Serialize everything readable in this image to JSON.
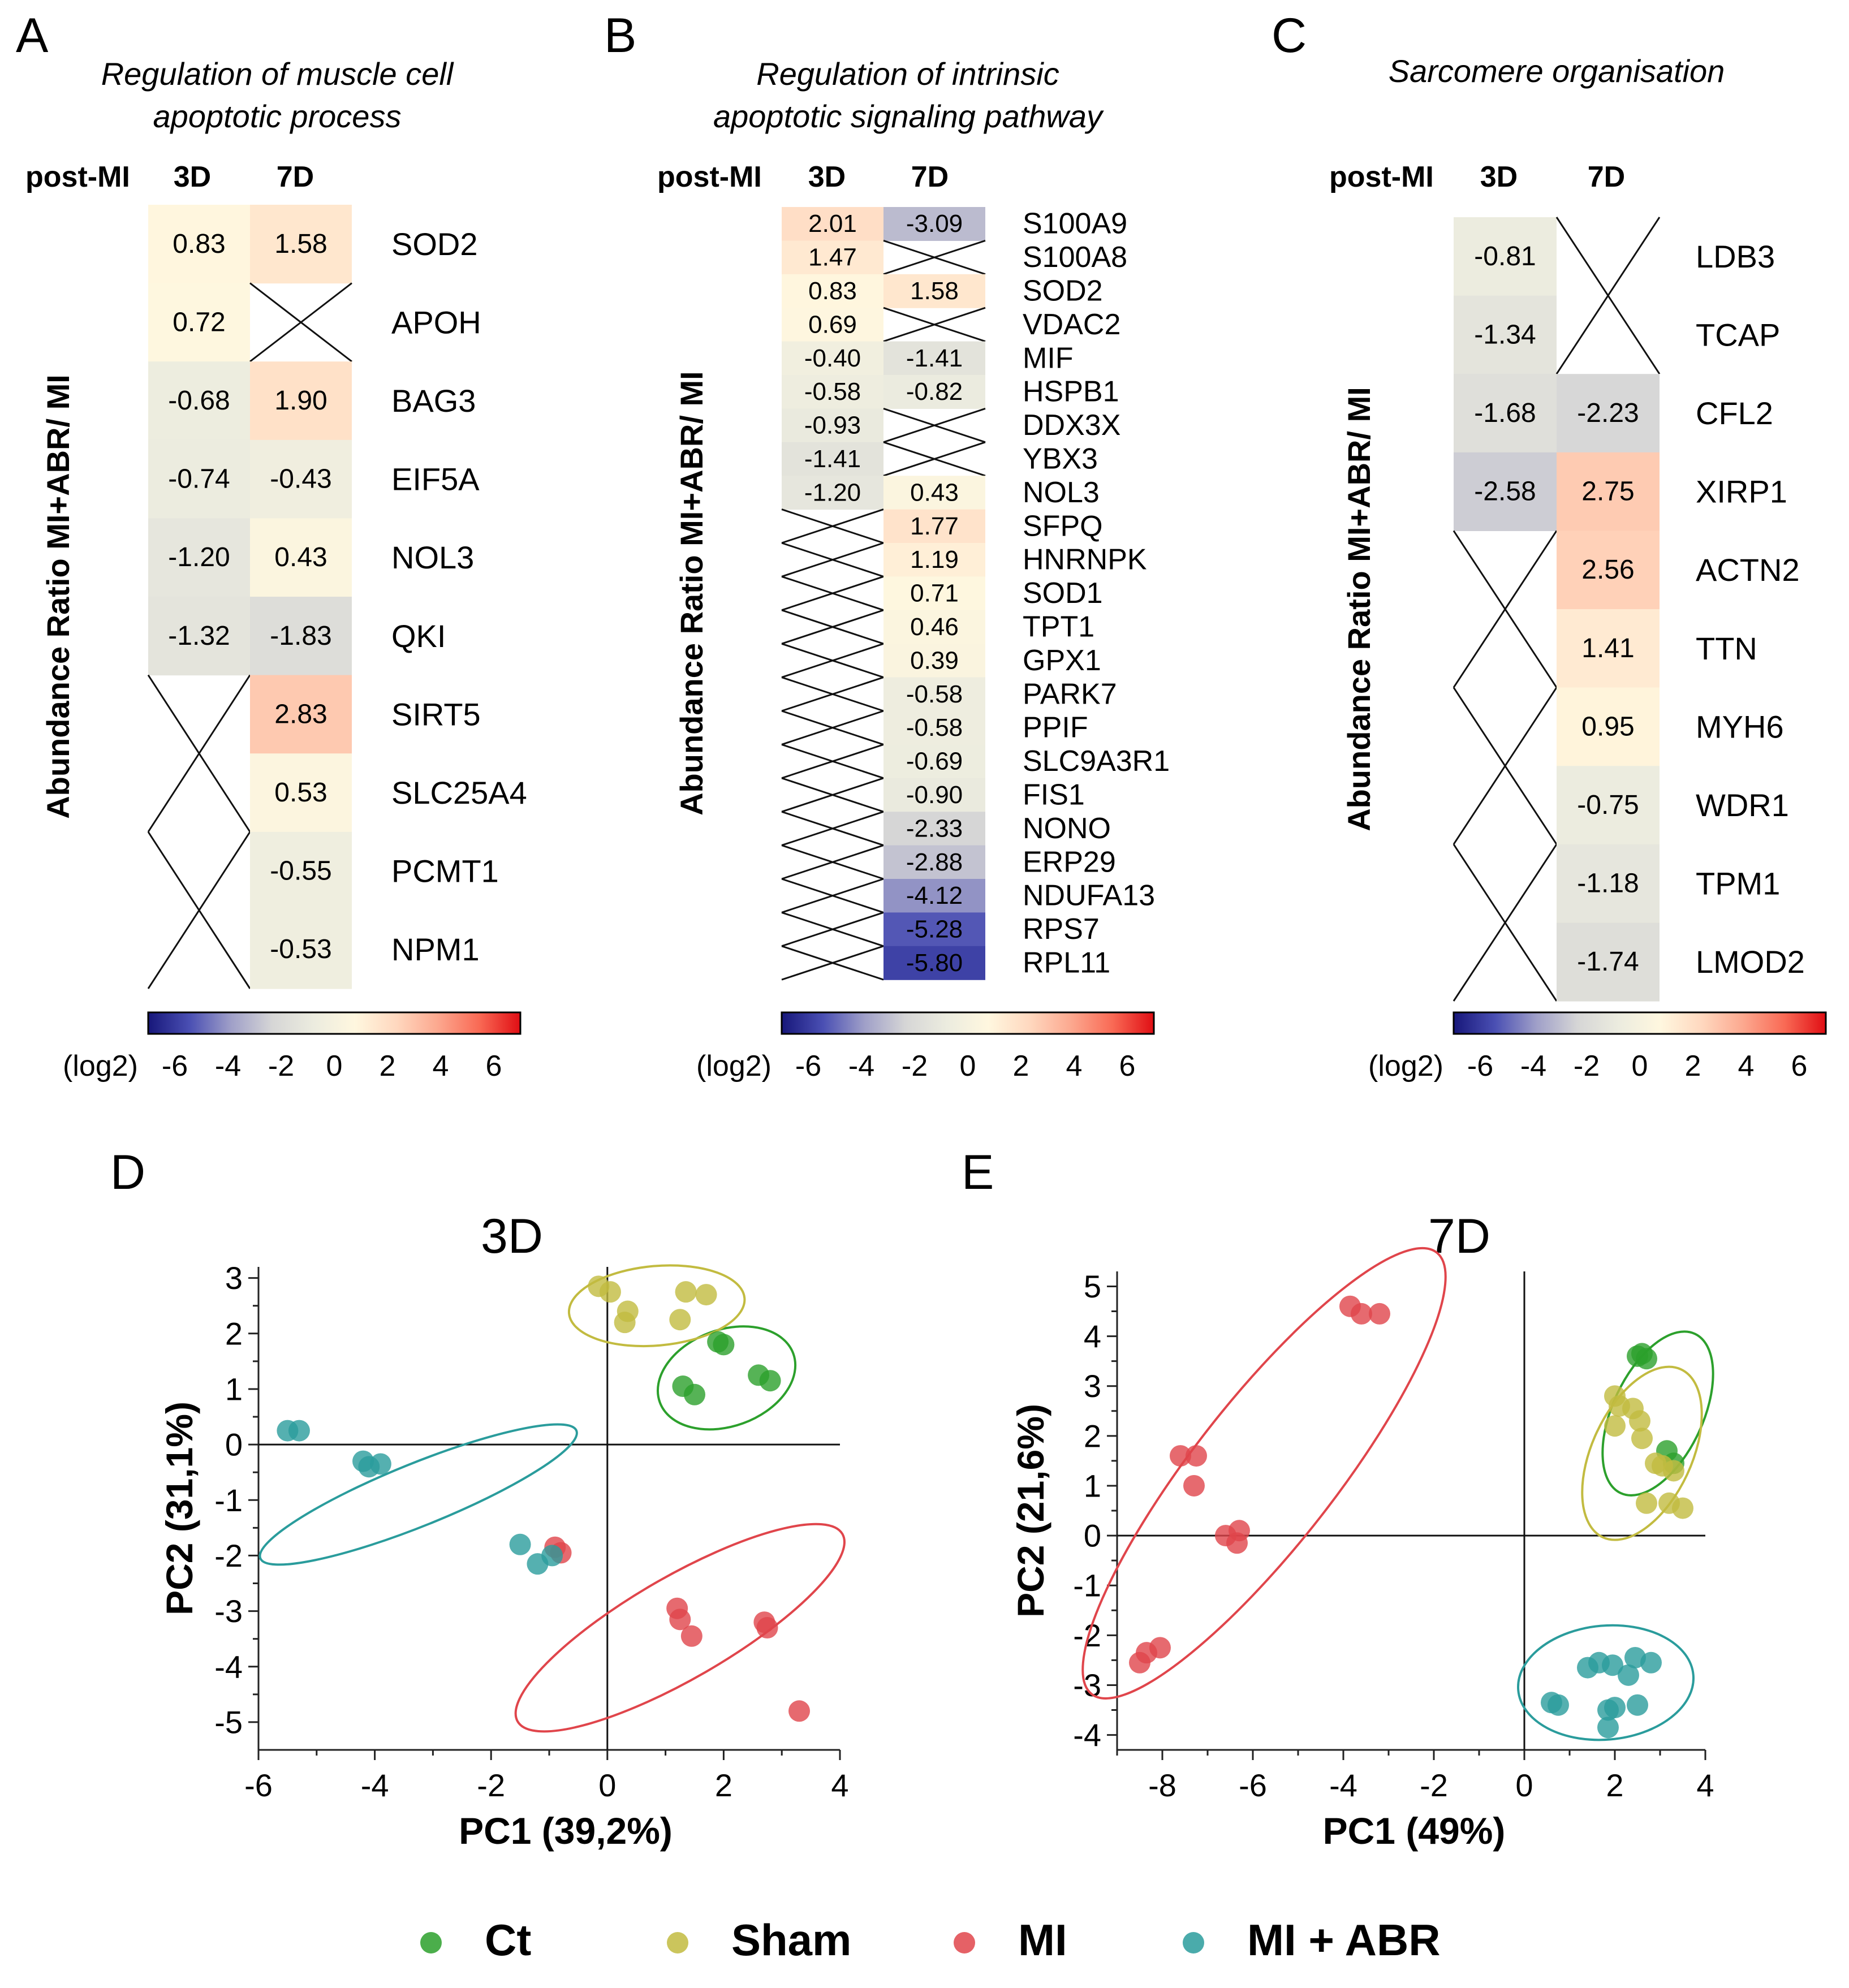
{
  "figure": {
    "legend": [
      {
        "label": "Ct",
        "color": "#2ca02c"
      },
      {
        "label": "Sham",
        "color": "#c2bb40"
      },
      {
        "label": "MI",
        "color": "#e0454b"
      },
      {
        "label": "MI + ABR",
        "color": "#2a9c9c"
      }
    ]
  },
  "colors": {
    "scale": [
      "#17177a",
      "#4a4fb3",
      "#9f9fc8",
      "#d6d6d6",
      "#ececdf",
      "#fff7df",
      "#ffd8bf",
      "#fca88f",
      "#f96a55",
      "#e00e14"
    ]
  },
  "chart_data": [
    {
      "type": "heatmap",
      "panel": "A",
      "title": "Regulation of  muscle cell apoptotic process",
      "title_lines": [
        "Regulation of  muscle cell",
        "apoptotic process"
      ],
      "header": "post-MI",
      "columns": [
        "3D",
        "7D"
      ],
      "ylabel": "Abundance Ratio MI+ABR/ MI",
      "rows": [
        {
          "gene": "SOD2",
          "values": [
            0.83,
            1.58
          ]
        },
        {
          "gene": "APOH",
          "values": [
            0.72,
            null
          ]
        },
        {
          "gene": "BAG3",
          "values": [
            -0.68,
            1.9
          ]
        },
        {
          "gene": "EIF5A",
          "values": [
            -0.74,
            -0.43
          ]
        },
        {
          "gene": "NOL3",
          "values": [
            -1.2,
            0.43
          ]
        },
        {
          "gene": "QKI",
          "values": [
            -1.32,
            -1.83
          ]
        },
        {
          "gene": "SIRT5",
          "values": [
            null,
            2.83
          ]
        },
        {
          "gene": "SLC25A4",
          "values": [
            null,
            0.53
          ]
        },
        {
          "gene": "PCMT1",
          "values": [
            null,
            -0.55
          ]
        },
        {
          "gene": "NPM1",
          "values": [
            null,
            -0.53
          ]
        }
      ],
      "colorbar": {
        "label": "(log2)",
        "ticks": [
          "-6",
          "-4",
          "-2",
          "0",
          "2",
          "4",
          "6"
        ],
        "range": [
          -7,
          7
        ]
      }
    },
    {
      "type": "heatmap",
      "panel": "B",
      "title": "Regulation of intrinsic apoptotic signaling pathway",
      "title_lines": [
        "Regulation of intrinsic",
        "apoptotic signaling pathway"
      ],
      "header": "post-MI",
      "columns": [
        "3D",
        "7D"
      ],
      "ylabel": "Abundance Ratio MI+ABR/ MI",
      "rows": [
        {
          "gene": "S100A9",
          "values": [
            2.01,
            -3.09
          ]
        },
        {
          "gene": "S100A8",
          "values": [
            1.47,
            null
          ]
        },
        {
          "gene": "SOD2",
          "values": [
            0.83,
            1.58
          ]
        },
        {
          "gene": "VDAC2",
          "values": [
            0.69,
            null
          ]
        },
        {
          "gene": "MIF",
          "values": [
            -0.4,
            -1.41
          ]
        },
        {
          "gene": "HSPB1",
          "values": [
            -0.58,
            -0.82
          ]
        },
        {
          "gene": "DDX3X",
          "values": [
            -0.93,
            null
          ]
        },
        {
          "gene": "YBX3",
          "values": [
            -1.41,
            null
          ]
        },
        {
          "gene": "NOL3",
          "values": [
            -1.2,
            0.43
          ]
        },
        {
          "gene": "SFPQ",
          "values": [
            null,
            1.77
          ]
        },
        {
          "gene": "HNRNPK",
          "values": [
            null,
            1.19
          ]
        },
        {
          "gene": "SOD1",
          "values": [
            null,
            0.71
          ]
        },
        {
          "gene": "TPT1",
          "values": [
            null,
            0.46
          ]
        },
        {
          "gene": "GPX1",
          "values": [
            null,
            0.39
          ]
        },
        {
          "gene": "PARK7",
          "values": [
            null,
            -0.58
          ]
        },
        {
          "gene": "PPIF",
          "values": [
            null,
            -0.58
          ]
        },
        {
          "gene": "SLC9A3R1",
          "values": [
            null,
            -0.69
          ]
        },
        {
          "gene": "FIS1",
          "values": [
            null,
            -0.9
          ]
        },
        {
          "gene": "NONO",
          "values": [
            null,
            -2.33
          ]
        },
        {
          "gene": "ERP29",
          "values": [
            null,
            -2.88
          ]
        },
        {
          "gene": "NDUFA13",
          "values": [
            null,
            -4.12
          ]
        },
        {
          "gene": "RPS7",
          "values": [
            null,
            -5.28
          ]
        },
        {
          "gene": "RPL11",
          "values": [
            null,
            -5.8
          ]
        }
      ],
      "colorbar": {
        "label": "(log2)",
        "ticks": [
          "-6",
          "-4",
          "-2",
          "0",
          "2",
          "4",
          "6"
        ],
        "range": [
          -7,
          7
        ]
      }
    },
    {
      "type": "heatmap",
      "panel": "C",
      "title": "Sarcomere organisation",
      "title_lines": [
        "Sarcomere organisation"
      ],
      "header": "post-MI",
      "columns": [
        "3D",
        "7D"
      ],
      "ylabel": "Abundance Ratio MI+ABR/ MI",
      "rows": [
        {
          "gene": "LDB3",
          "values": [
            -0.81,
            null
          ]
        },
        {
          "gene": "TCAP",
          "values": [
            -1.34,
            null
          ]
        },
        {
          "gene": "CFL2",
          "values": [
            -1.68,
            -2.23
          ]
        },
        {
          "gene": "XIRP1",
          "values": [
            -2.58,
            2.75
          ]
        },
        {
          "gene": "ACTN2",
          "values": [
            null,
            2.56
          ]
        },
        {
          "gene": "TTN",
          "values": [
            null,
            1.41
          ]
        },
        {
          "gene": "MYH6",
          "values": [
            null,
            0.95
          ]
        },
        {
          "gene": "WDR1",
          "values": [
            null,
            -0.75
          ]
        },
        {
          "gene": "TPM1",
          "values": [
            null,
            -1.18
          ]
        },
        {
          "gene": "LMOD2",
          "values": [
            null,
            -1.74
          ]
        }
      ],
      "colorbar": {
        "label": "(log2)",
        "ticks": [
          "-6",
          "-4",
          "-2",
          "0",
          "2",
          "4",
          "6"
        ],
        "range": [
          -7,
          7
        ]
      }
    },
    {
      "type": "scatter",
      "panel": "D",
      "title": "3D",
      "xlabel": "PC1 (39,2%)",
      "ylabel": "PC2 (31,1%)",
      "xlim": [
        -6,
        4
      ],
      "ylim": [
        -5.5,
        3.2
      ],
      "xticks": [
        -6,
        -4,
        -2,
        0,
        2,
        4
      ],
      "yticks": [
        3,
        2,
        1,
        0,
        -1,
        -2,
        -3,
        -4,
        -5
      ],
      "series": [
        {
          "name": "Ct",
          "points": [
            [
              2.0,
              1.8
            ],
            [
              1.9,
              1.85
            ],
            [
              1.3,
              1.05
            ],
            [
              1.5,
              0.9
            ],
            [
              2.6,
              1.25
            ],
            [
              2.8,
              1.15
            ]
          ]
        },
        {
          "name": "Sham",
          "points": [
            [
              -0.15,
              2.85
            ],
            [
              0.05,
              2.75
            ],
            [
              0.35,
              2.4
            ],
            [
              0.3,
              2.2
            ],
            [
              1.35,
              2.75
            ],
            [
              1.7,
              2.7
            ],
            [
              1.25,
              2.25
            ]
          ]
        },
        {
          "name": "MI",
          "points": [
            [
              -0.9,
              -1.85
            ],
            [
              -0.8,
              -1.95
            ],
            [
              1.2,
              -2.95
            ],
            [
              1.25,
              -3.15
            ],
            [
              1.45,
              -3.45
            ],
            [
              2.7,
              -3.2
            ],
            [
              2.75,
              -3.3
            ],
            [
              3.3,
              -4.8
            ]
          ]
        },
        {
          "name": "MI + ABR",
          "points": [
            [
              -5.5,
              0.25
            ],
            [
              -5.3,
              0.25
            ],
            [
              -4.2,
              -0.3
            ],
            [
              -3.9,
              -0.35
            ],
            [
              -4.1,
              -0.4
            ],
            [
              -1.5,
              -1.8
            ],
            [
              -1.2,
              -2.15
            ],
            [
              -0.95,
              -2.0
            ]
          ]
        }
      ],
      "ellipses": [
        {
          "name": "Ct",
          "center": [
            2.05,
            1.2
          ],
          "rx": 1.25,
          "ry": 0.85,
          "angle": -20
        },
        {
          "name": "Sham",
          "center": [
            0.85,
            2.5
          ],
          "rx": 1.55,
          "ry": 0.7,
          "angle": -5
        },
        {
          "name": "MI",
          "center": [
            1.25,
            -3.3
          ],
          "rx": 3.3,
          "ry": 0.9,
          "angle": -30
        },
        {
          "name": "MI + ABR",
          "center": [
            -3.25,
            -0.9
          ],
          "rx": 3.0,
          "ry": 0.55,
          "angle": -22
        }
      ]
    },
    {
      "type": "scatter",
      "panel": "E",
      "title": "7D",
      "xlabel": "PC1 (49%)",
      "ylabel": "PC2 (21,6%)",
      "xlim": [
        -9,
        4
      ],
      "ylim": [
        -4.3,
        5.3
      ],
      "xticks": [
        -8,
        -6,
        -4,
        -2,
        0,
        2,
        4
      ],
      "yticks": [
        5,
        4,
        3,
        2,
        1,
        0,
        -1,
        -2,
        -3,
        -4
      ],
      "series": [
        {
          "name": "Ct",
          "points": [
            [
              2.5,
              3.6
            ],
            [
              2.6,
              3.65
            ],
            [
              2.7,
              3.55
            ],
            [
              3.15,
              1.7
            ],
            [
              3.3,
              1.45
            ]
          ]
        },
        {
          "name": "Sham",
          "points": [
            [
              2.0,
              2.8
            ],
            [
              2.1,
              2.6
            ],
            [
              2.4,
              2.55
            ],
            [
              2.55,
              2.3
            ],
            [
              2.0,
              2.2
            ],
            [
              2.6,
              1.95
            ],
            [
              2.9,
              1.45
            ],
            [
              3.05,
              1.4
            ],
            [
              3.3,
              1.3
            ],
            [
              2.7,
              0.65
            ],
            [
              3.2,
              0.65
            ],
            [
              3.5,
              0.55
            ]
          ]
        },
        {
          "name": "MI",
          "points": [
            [
              -3.85,
              4.6
            ],
            [
              -3.6,
              4.45
            ],
            [
              -3.2,
              4.45
            ],
            [
              -7.6,
              1.6
            ],
            [
              -7.25,
              1.6
            ],
            [
              -7.3,
              1.0
            ],
            [
              -6.6,
              0.0
            ],
            [
              -6.3,
              0.1
            ],
            [
              -6.35,
              -0.15
            ],
            [
              -8.5,
              -2.55
            ],
            [
              -8.35,
              -2.35
            ],
            [
              -8.05,
              -2.25
            ]
          ]
        },
        {
          "name": "MI + ABR",
          "points": [
            [
              0.6,
              -3.35
            ],
            [
              0.75,
              -3.4
            ],
            [
              1.65,
              -2.55
            ],
            [
              1.4,
              -2.65
            ],
            [
              1.95,
              -2.6
            ],
            [
              2.45,
              -2.45
            ],
            [
              2.8,
              -2.55
            ],
            [
              2.3,
              -2.8
            ],
            [
              2.0,
              -3.45
            ],
            [
              1.85,
              -3.5
            ],
            [
              2.5,
              -3.4
            ],
            [
              1.85,
              -3.85
            ]
          ]
        }
      ],
      "ellipses": [
        {
          "name": "Ct",
          "center": [
            2.95,
            2.45
          ],
          "rx": 1.85,
          "ry": 0.95,
          "angle": -65
        },
        {
          "name": "Sham",
          "center": [
            2.6,
            1.65
          ],
          "rx": 1.95,
          "ry": 1.05,
          "angle": -65
        },
        {
          "name": "MI",
          "center": [
            -5.75,
            1.25
          ],
          "rx": 5.9,
          "ry": 1.5,
          "angle": -52
        },
        {
          "name": "MI + ABR",
          "center": [
            1.8,
            -2.95
          ],
          "rx": 1.85,
          "ry": 1.2,
          "angle": -5
        }
      ]
    }
  ]
}
